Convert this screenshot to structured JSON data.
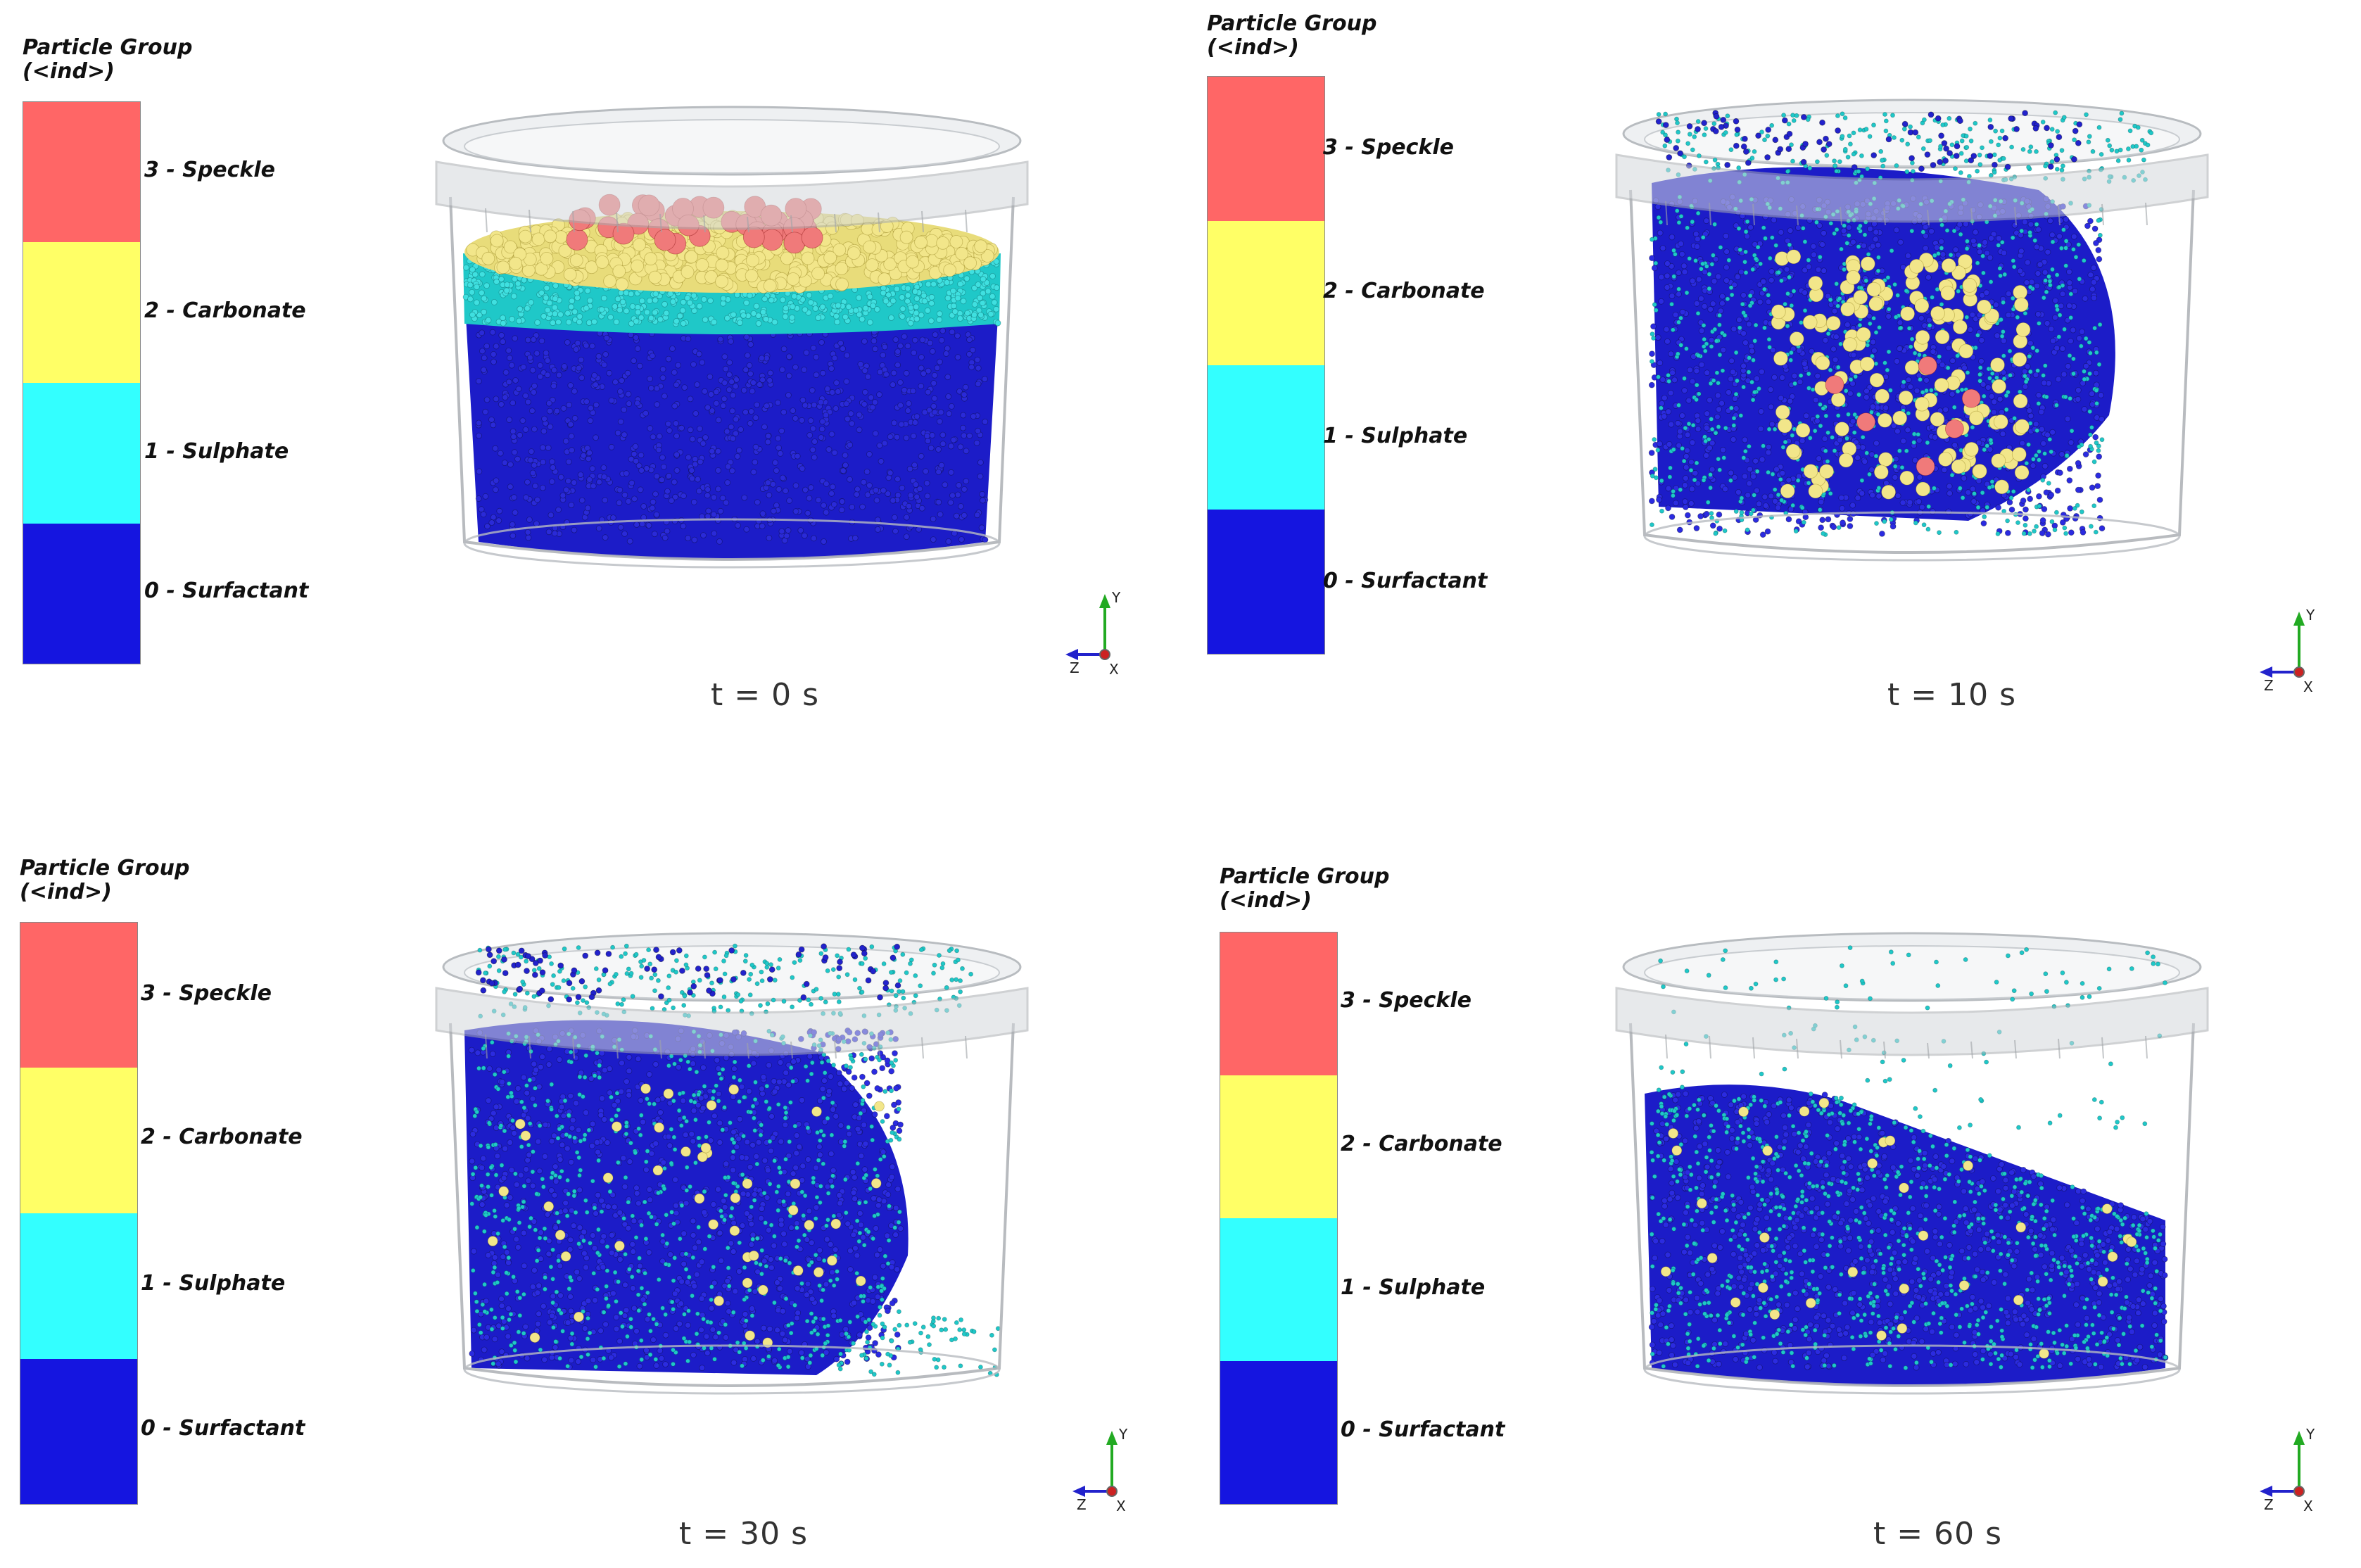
{
  "legend": {
    "title": "Particle Group",
    "subtitle": "(<ind>)",
    "groups": [
      {
        "label": "3 - Speckle",
        "color": "#ff6666"
      },
      {
        "label": "2 - Carbonate",
        "color": "#ffff66"
      },
      {
        "label": "1 - Sulphate",
        "color": "#33ffff"
      },
      {
        "label": "0 - Surfactant",
        "color": "#1515e0"
      }
    ]
  },
  "axis_labels": {
    "y": "Y",
    "z": "Z",
    "x": "X"
  },
  "frames": [
    {
      "time_label": "t = 0 s",
      "state": "settled-layers"
    },
    {
      "time_label": "t = 10 s",
      "state": "tilted-mixing"
    },
    {
      "time_label": "t = 30 s",
      "state": "tilted-mixing"
    },
    {
      "time_label": "t = 60 s",
      "state": "sloped-mixed"
    }
  ],
  "colors": {
    "surfactant": "#1c1cc8",
    "sulphate": "#1fc8c8",
    "carbonate": "#f2e68a",
    "speckle": "#f07a7a",
    "container": "#d8dce0"
  }
}
